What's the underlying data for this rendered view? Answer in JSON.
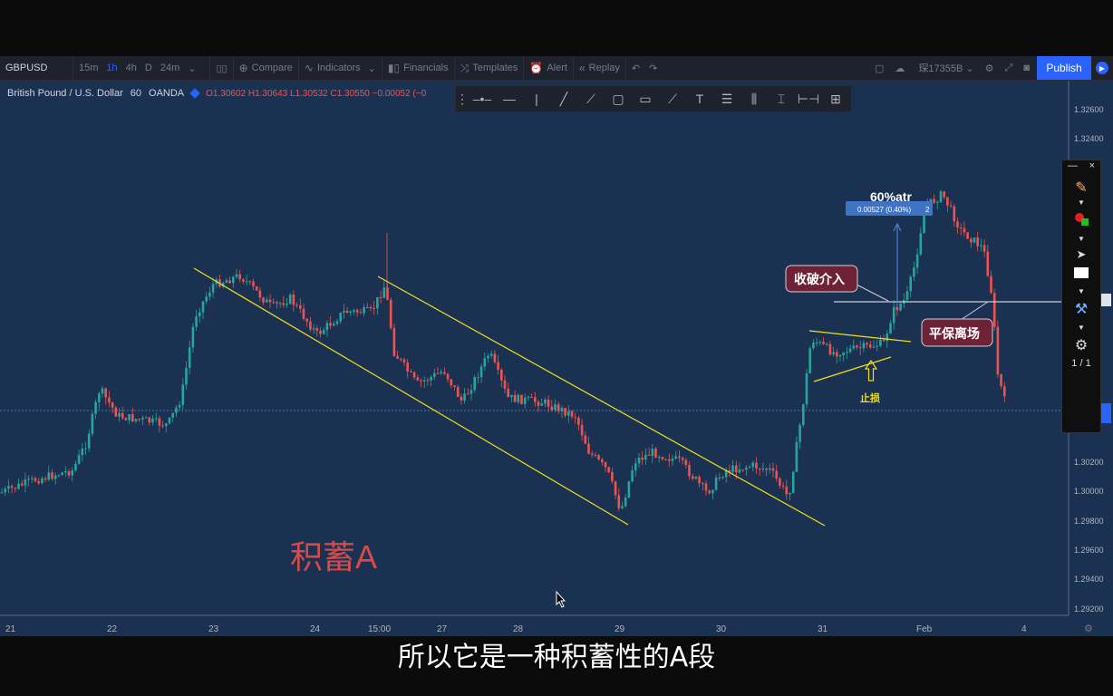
{
  "toolbar": {
    "symbol": "GBPUSD",
    "timeframes": [
      "15m",
      "1h",
      "4h",
      "D",
      "24m"
    ],
    "active_timeframe": "1h",
    "compare_label": "Compare",
    "indicators_label": "Indicators",
    "financials_label": "Financials",
    "templates_label": "Templates",
    "alert_label": "Alert",
    "replay_label": "Replay",
    "account_label": "琛17355B",
    "publish_label": "Publish"
  },
  "legend": {
    "instrument": "British Pound / U.S. Dollar",
    "interval": "60",
    "source": "OANDA",
    "ohlc": "O1.30602 H1.30643 L1.30532 C1.30550 −0.00052 (−0"
  },
  "price_axis": [
    "1.32600",
    "1.32400",
    "1.30200",
    "1.30000",
    "1.29800",
    "1.29600",
    "1.29400",
    "1.29200"
  ],
  "price_axis_top": "1.32600",
  "time_axis": [
    "21",
    "22",
    "23",
    "24",
    "15:00",
    "27",
    "28",
    "29",
    "30",
    "31",
    "Feb",
    "4"
  ],
  "annotations": {
    "accumulation_label": "积蓄A",
    "breakout_label": "收破介入",
    "breakeven_label": "平保离场",
    "stoploss_label": "止损",
    "atr_label": "60%atr",
    "measure_label": "0.00527 (0.40%)",
    "measure_extra": "2"
  },
  "side_panel": {
    "page": "1 / 1"
  },
  "subtitle": "所以它是一种积蓄性的A段",
  "colors": {
    "chart_bg": "#1b3152",
    "up": "#26a69a",
    "down": "#ef5350",
    "trendline": "#f0e01a",
    "accent": "#2962ff"
  }
}
